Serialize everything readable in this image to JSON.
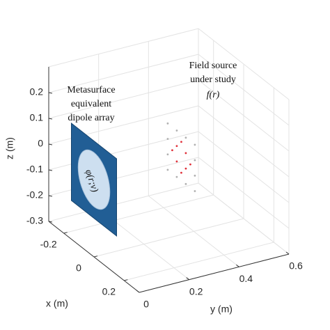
{
  "chart_data": {
    "type": "scatter3d",
    "xlabel": "x (m)",
    "ylabel": "y (m)",
    "zlabel": "z (m)",
    "xlim": [
      -0.3,
      0.3
    ],
    "ylim": [
      0,
      0.6
    ],
    "zlim": [
      -0.3,
      0.3
    ],
    "xticks": [
      -0.2,
      0,
      0.2
    ],
    "yticks": [
      0,
      0.2,
      0.4,
      0.6
    ],
    "zticks": [
      -0.3,
      -0.2,
      -0.1,
      0,
      0.1,
      0.2
    ],
    "grid": true,
    "series": [
      {
        "color": "#b0b0b0",
        "x": [
          -0.09,
          -0.03,
          0.03,
          0.09,
          -0.09,
          0.09,
          -0.09,
          0.09,
          -0.09,
          -0.03,
          0.03,
          0.09
        ],
        "y": [
          0.35,
          0.35,
          0.35,
          0.35,
          0.35,
          0.35,
          0.35,
          0.35,
          0.35,
          0.35,
          0.35,
          0.35
        ],
        "z": [
          0.09,
          0.09,
          0.09,
          0.09,
          0.03,
          0.03,
          -0.03,
          -0.03,
          -0.09,
          -0.09,
          -0.09,
          -0.09
        ]
      },
      {
        "color": "#e0303a",
        "x": [
          -0.03,
          0.03,
          -0.03,
          0.03,
          0,
          0,
          -0.06,
          0.06
        ],
        "y": [
          0.35,
          0.35,
          0.35,
          0.35,
          0.35,
          0.35,
          0.35,
          0.35
        ],
        "z": [
          0.03,
          0.03,
          -0.03,
          -0.03,
          0.06,
          -0.06,
          0,
          0
        ]
      }
    ],
    "annotations": [
      {
        "lines": [
          "Metasurface",
          "equivalent",
          "dipole array"
        ]
      },
      {
        "lines": [
          "Field source",
          "under study",
          "f(r)"
        ]
      },
      {
        "lines": [
          "φ(r;ν)"
        ]
      }
    ]
  }
}
